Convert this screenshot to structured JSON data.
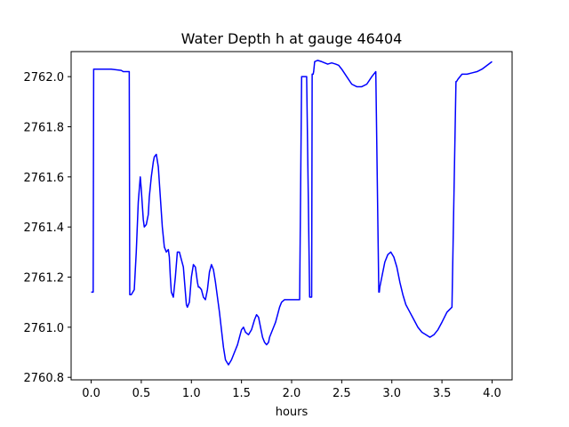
{
  "chart_data": {
    "type": "line",
    "title": "Water Depth h at gauge 46404",
    "xlabel": "hours",
    "ylabel": "",
    "xlim": [
      -0.2,
      4.2
    ],
    "ylim": [
      2760.79,
      2762.1
    ],
    "xticks": [
      0.0,
      0.5,
      1.0,
      1.5,
      2.0,
      2.5,
      3.0,
      3.5,
      4.0
    ],
    "xtick_labels": [
      "0.0",
      "0.5",
      "1.0",
      "1.5",
      "2.0",
      "2.5",
      "3.0",
      "3.5",
      "4.0"
    ],
    "yticks": [
      2760.8,
      2761.0,
      2761.2,
      2761.4,
      2761.6,
      2761.8,
      2762.0
    ],
    "ytick_labels": [
      "2760.8",
      "2761.0",
      "2761.2",
      "2761.4",
      "2761.6",
      "2761.8",
      "2762.0"
    ],
    "grid": false,
    "line_color": "#0000ff",
    "series": [
      {
        "name": "",
        "x": [
          0.0,
          0.02,
          0.025,
          0.1,
          0.2,
          0.3,
          0.32,
          0.38,
          0.385,
          0.4,
          0.43,
          0.45,
          0.47,
          0.49,
          0.5,
          0.52,
          0.53,
          0.55,
          0.57,
          0.58,
          0.6,
          0.62,
          0.63,
          0.65,
          0.67,
          0.69,
          0.71,
          0.73,
          0.75,
          0.77,
          0.78,
          0.79,
          0.8,
          0.82,
          0.84,
          0.86,
          0.88,
          0.9,
          0.92,
          0.94,
          0.95,
          0.96,
          0.98,
          1.0,
          1.02,
          1.04,
          1.06,
          1.07,
          1.08,
          1.1,
          1.12,
          1.14,
          1.16,
          1.18,
          1.2,
          1.22,
          1.24,
          1.26,
          1.28,
          1.3,
          1.32,
          1.34,
          1.37,
          1.4,
          1.43,
          1.46,
          1.48,
          1.5,
          1.52,
          1.54,
          1.57,
          1.6,
          1.63,
          1.65,
          1.67,
          1.69,
          1.71,
          1.73,
          1.75,
          1.77,
          1.78,
          1.8,
          1.82,
          1.84,
          1.86,
          1.88,
          1.9,
          1.93,
          1.96,
          2.0,
          2.03,
          2.06,
          2.08,
          2.1,
          2.105,
          2.12,
          2.15,
          2.18,
          2.2,
          2.205,
          2.21,
          2.215,
          2.22,
          2.225,
          2.23,
          2.26,
          2.3,
          2.33,
          2.36,
          2.4,
          2.44,
          2.47,
          2.5,
          2.55,
          2.6,
          2.65,
          2.7,
          2.75,
          2.8,
          2.84,
          2.87,
          2.875,
          2.88,
          2.9,
          2.93,
          2.96,
          2.99,
          3.02,
          3.05,
          3.08,
          3.11,
          3.14,
          3.18,
          3.22,
          3.26,
          3.3,
          3.34,
          3.38,
          3.42,
          3.46,
          3.5,
          3.55,
          3.6,
          3.64,
          3.645,
          3.66,
          3.7,
          3.75,
          3.8,
          3.85,
          3.9,
          3.95,
          4.0
        ],
        "y": [
          2761.14,
          2761.14,
          2762.03,
          2762.03,
          2762.03,
          2762.025,
          2762.02,
          2762.02,
          2761.13,
          2761.13,
          2761.15,
          2761.3,
          2761.5,
          2761.6,
          2761.55,
          2761.43,
          2761.4,
          2761.41,
          2761.45,
          2761.52,
          2761.6,
          2761.66,
          2761.68,
          2761.69,
          2761.64,
          2761.52,
          2761.4,
          2761.32,
          2761.3,
          2761.31,
          2761.28,
          2761.2,
          2761.14,
          2761.12,
          2761.2,
          2761.3,
          2761.3,
          2761.27,
          2761.24,
          2761.14,
          2761.09,
          2761.08,
          2761.1,
          2761.2,
          2761.25,
          2761.24,
          2761.18,
          2761.16,
          2761.16,
          2761.15,
          2761.12,
          2761.11,
          2761.15,
          2761.22,
          2761.25,
          2761.23,
          2761.18,
          2761.12,
          2761.06,
          2760.99,
          2760.92,
          2760.87,
          2760.85,
          2760.87,
          2760.9,
          2760.93,
          2760.96,
          2760.99,
          2761.0,
          2760.98,
          2760.97,
          2760.99,
          2761.03,
          2761.05,
          2761.04,
          2761.0,
          2760.96,
          2760.94,
          2760.93,
          2760.94,
          2760.96,
          2760.98,
          2761.0,
          2761.02,
          2761.05,
          2761.08,
          2761.1,
          2761.11,
          2761.11,
          2761.11,
          2761.11,
          2761.11,
          2761.11,
          2762.0,
          2762.0,
          2762.0,
          2762.0,
          2761.12,
          2761.12,
          2762.01,
          2762.01,
          2762.01,
          2762.02,
          2762.04,
          2762.06,
          2762.065,
          2762.06,
          2762.055,
          2762.05,
          2762.055,
          2762.05,
          2762.045,
          2762.03,
          2762.0,
          2761.97,
          2761.96,
          2761.96,
          2761.97,
          2762.0,
          2762.02,
          2761.14,
          2761.14,
          2761.16,
          2761.2,
          2761.26,
          2761.29,
          2761.3,
          2761.28,
          2761.24,
          2761.18,
          2761.13,
          2761.09,
          2761.06,
          2761.03,
          2761.0,
          2760.98,
          2760.97,
          2760.96,
          2760.97,
          2760.99,
          2761.02,
          2761.06,
          2761.08,
          2761.98,
          2761.98,
          2761.99,
          2762.01,
          2762.01,
          2762.015,
          2762.02,
          2762.03,
          2762.045,
          2762.06
        ]
      }
    ]
  }
}
